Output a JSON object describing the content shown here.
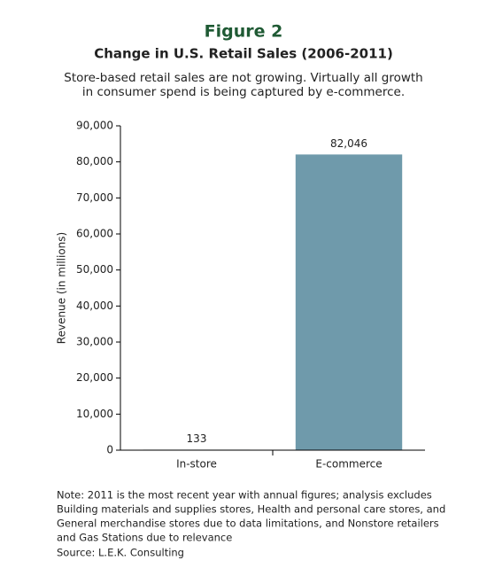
{
  "chart_data": {
    "type": "bar",
    "figure_label": "Figure 2",
    "title": "Change in U.S. Retail Sales (2006-2011)",
    "subtitle": [
      "Store-based retail sales are not growing. Virtually all growth",
      "in consumer spend is being captured by e-commerce."
    ],
    "y_label": "Revenue (in millions)",
    "categories": [
      "In-store",
      "E-commerce"
    ],
    "values": [
      133,
      82046
    ],
    "value_labels": [
      "133",
      "82,046"
    ],
    "colors": [
      "#2c5a3b",
      "#6f9aab"
    ],
    "ylim": [
      0,
      90000
    ],
    "yticks": [
      0,
      {
        "value": 10000,
        "label": "10,000"
      },
      {
        "value": 20000,
        "label": "20,000"
      },
      {
        "value": 30000,
        "label": "30,000"
      },
      {
        "value": 40000,
        "label": "40,000"
      },
      {
        "value": 50000,
        "label": "50,000"
      },
      {
        "value": 60000,
        "label": "60,000"
      },
      {
        "value": 70000,
        "label": "70,000"
      },
      {
        "value": 80000,
        "label": "80,000"
      },
      {
        "value": 90000,
        "label": "90,000"
      }
    ],
    "grid": false,
    "note": [
      "Note: 2011 is the most recent year with annual figures; analysis excludes",
      "Building materials and supplies stores, Health and personal care stores, and",
      "General merchandise stores due to data limitations, and Nonstore retailers",
      "and Gas Stations due to relevance"
    ],
    "source": "Source:  L.E.K. Consulting"
  }
}
